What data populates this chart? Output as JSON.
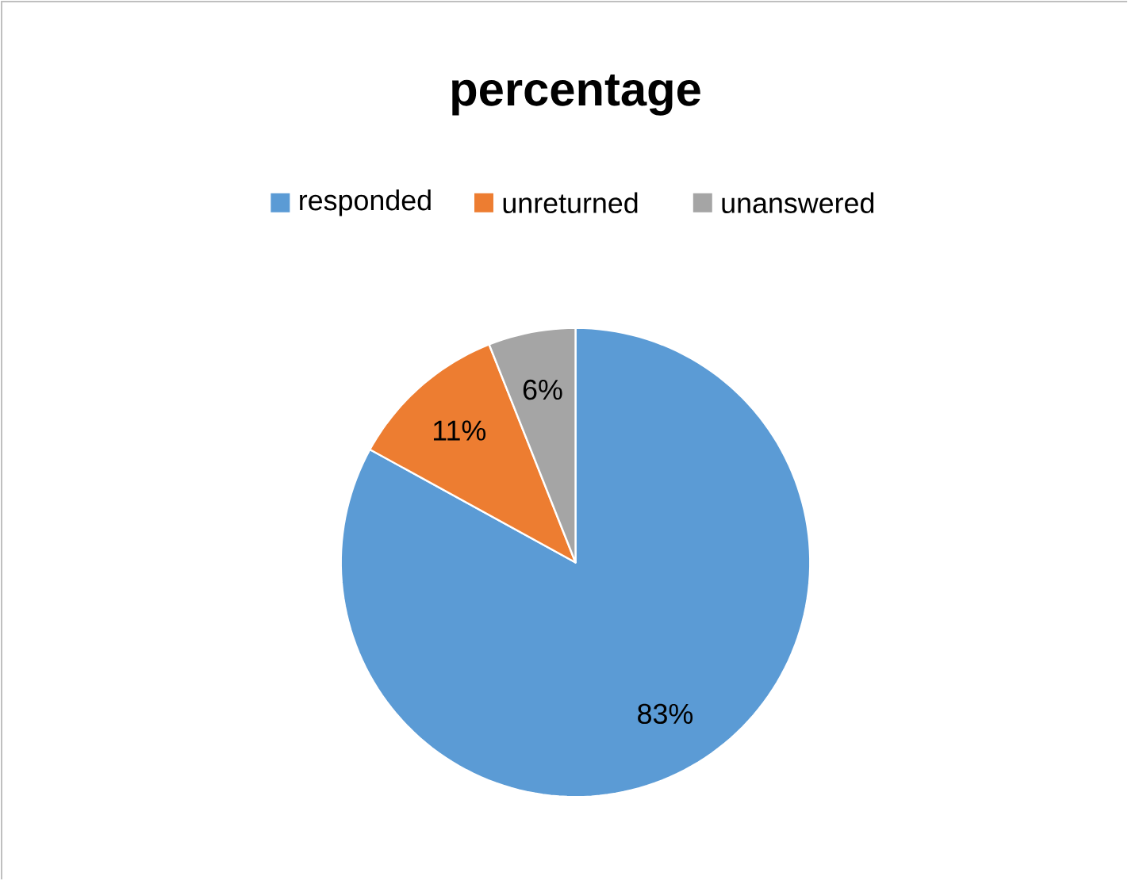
{
  "chart_data": {
    "type": "pie",
    "title": "percentage",
    "categories": [
      "responded",
      "unreturned",
      "unanswered"
    ],
    "values": [
      83,
      11,
      6
    ],
    "colors": [
      "#5b9bd5",
      "#ed7d31",
      "#a5a5a5"
    ],
    "value_labels": [
      "83%",
      "11%",
      "6%"
    ],
    "legend": "top"
  }
}
